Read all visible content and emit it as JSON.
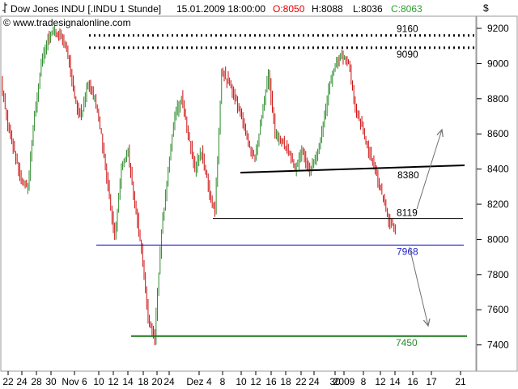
{
  "header": {
    "icon_name": "candle-chart-icon",
    "title": "Dow Jones INDU [.INDU  1 Stunde]",
    "datetime": "15.01.2009 18:00:00",
    "open": "O:8050",
    "high": "H:8088",
    "low": "L:8036",
    "close": "C:8063",
    "source": "© www.tradesignalonline.com",
    "currency_symbol": "$"
  },
  "colors": {
    "up": "#2e8b2e",
    "down": "#cc1010",
    "hdr_open": "#e00000",
    "hdr_close": "#2aa02a",
    "line_7968": "#0000cc",
    "line_7450": "#1a7a1a",
    "label_7968": "#2222cc",
    "label_7450": "#2a8a2a",
    "trendline": "#000000",
    "arrow": "#707070"
  },
  "chart_data": {
    "type": "line",
    "title": "Dow Jones INDU [.INDU  1 Stunde]",
    "xlabel": "",
    "ylabel": "$",
    "ylim": [
      7260,
      9260
    ],
    "grid": false,
    "yticks": [
      7400,
      7600,
      7800,
      8000,
      8200,
      8400,
      8600,
      8800,
      9000,
      9200
    ],
    "xticks": [
      "22",
      "24",
      "28",
      "30",
      "Nov 6",
      "10",
      "12",
      "14",
      "18",
      "20",
      "24",
      "Dez 4",
      "8",
      "10",
      "12",
      "16",
      "18",
      "22",
      "24",
      "30",
      "2009",
      "8",
      "12",
      "14",
      "16",
      "17",
      "21"
    ],
    "series": [
      {
        "x": [
          "Oct 21",
          "Oct 22",
          "Oct 23",
          "Oct 24",
          "Oct 27",
          "Oct 28",
          "Oct 29",
          "Oct 30",
          "Oct 31",
          "Nov 3",
          "Nov 4",
          "Nov 5",
          "Nov 6",
          "Nov 7",
          "Nov 10",
          "Nov 11",
          "Nov 12",
          "Nov 13",
          "Nov 14",
          "Nov 17",
          "Nov 18",
          "Nov 19",
          "Nov 20",
          "Nov 21",
          "Nov 24",
          "Nov 25",
          "Nov 26",
          "Nov 28",
          "Dec 1",
          "Dec 2",
          "Dec 3",
          "Dec 4",
          "Dec 5",
          "Dec 8",
          "Dec 9",
          "Dec 10",
          "Dec 11",
          "Dec 12",
          "Dec 15",
          "Dec 16",
          "Dec 17",
          "Dec 18",
          "Dec 19",
          "Dec 22",
          "Dec 23",
          "Dec 24",
          "Dec 26",
          "Dec 29",
          "Dec 30",
          "Dec 31",
          "Jan 2",
          "Jan 5",
          "Jan 6",
          "Jan 7",
          "Jan 8",
          "Jan 9",
          "Jan 12",
          "Jan 13",
          "Jan 14",
          "Jan 15"
        ],
        "values": [
          8900,
          8650,
          8500,
          8330,
          8300,
          8700,
          9000,
          9150,
          9180,
          9150,
          9050,
          8800,
          8700,
          8900,
          8800,
          8600,
          8300,
          8000,
          8400,
          8500,
          8200,
          7950,
          7550,
          7450,
          8050,
          8400,
          8700,
          8800,
          8600,
          8400,
          8500,
          8300,
          8150,
          8950,
          8900,
          8800,
          8700,
          8550,
          8450,
          8700,
          8950,
          8600,
          8550,
          8500,
          8400,
          8500,
          8400,
          8450,
          8600,
          8850,
          9000,
          9050,
          9000,
          8750,
          8650,
          8500,
          8400,
          8250,
          8100,
          8063
        ]
      }
    ],
    "levels": [
      {
        "label": "9160",
        "value": 9160,
        "style": "dotted"
      },
      {
        "label": "9090",
        "value": 9090,
        "style": "dotted"
      },
      {
        "label": "8380",
        "value": 8380,
        "style": "trendline"
      },
      {
        "label": "8119",
        "value": 8119,
        "style": "solid"
      },
      {
        "label": "7968",
        "value": 7968,
        "style": "solid"
      },
      {
        "label": "7450",
        "value": 7450,
        "style": "solid"
      }
    ]
  }
}
